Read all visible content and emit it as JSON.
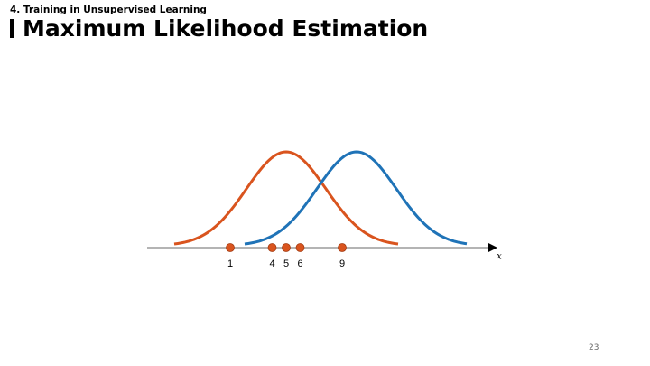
{
  "header": {
    "section": "4. Training in Unsupervised Learning",
    "title": "Maximum Likelihood Estimation"
  },
  "diagram": {
    "points": [
      1,
      4,
      5,
      6,
      9
    ],
    "axis_label": "x"
  },
  "page_number": "23"
}
